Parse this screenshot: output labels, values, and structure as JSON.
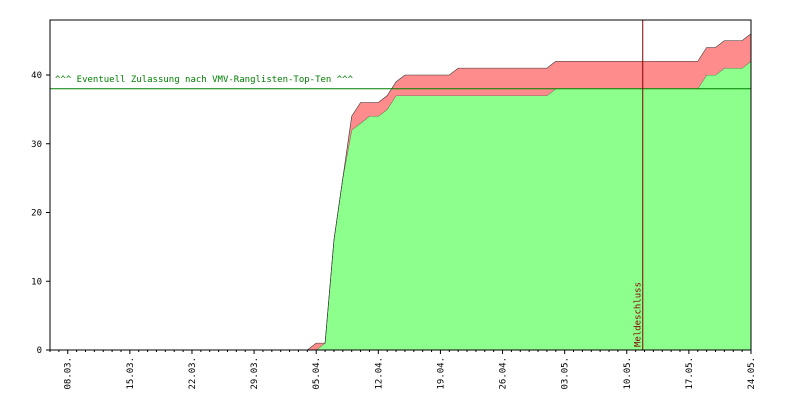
{
  "chart_data": {
    "type": "stacked_area",
    "categories": [
      null,
      null,
      "08.03.",
      null,
      null,
      null,
      null,
      null,
      null,
      "15.03.",
      null,
      null,
      null,
      null,
      null,
      null,
      "22.03.",
      null,
      null,
      null,
      null,
      null,
      null,
      "29.03.",
      null,
      null,
      null,
      null,
      null,
      null,
      "05.04.",
      null,
      null,
      null,
      null,
      null,
      null,
      "12.04.",
      null,
      null,
      null,
      null,
      null,
      null,
      "19.04.",
      null,
      null,
      null,
      null,
      null,
      null,
      "26.04.",
      null,
      null,
      null,
      null,
      null,
      null,
      "03.05.",
      null,
      null,
      null,
      null,
      null,
      null,
      "10.05.",
      null,
      null,
      null,
      null,
      null,
      null,
      "17.05.",
      null,
      null,
      null,
      null,
      null,
      null,
      "24.05."
    ],
    "series": [
      {
        "color": "#8cff8c",
        "values": [
          0,
          0,
          0,
          0,
          0,
          0,
          0,
          0,
          0,
          0,
          0,
          0,
          0,
          0,
          0,
          0,
          0,
          0,
          0,
          0,
          0,
          0,
          0,
          0,
          0,
          0,
          0,
          0,
          0,
          0,
          0,
          1,
          16,
          25,
          32,
          33,
          34,
          34,
          35,
          37,
          37,
          37,
          37,
          37,
          37,
          37,
          37,
          37,
          37,
          37,
          37,
          37,
          37,
          37,
          37,
          37,
          37,
          38,
          38,
          38,
          38,
          38,
          38,
          38,
          38,
          38,
          38,
          38,
          38,
          38,
          38,
          38,
          38,
          38,
          40,
          40,
          41,
          41,
          41,
          42
        ]
      },
      {
        "color": "#ff8c8c",
        "values": [
          0,
          0,
          0,
          0,
          0,
          0,
          0,
          0,
          0,
          0,
          0,
          0,
          0,
          0,
          0,
          0,
          0,
          0,
          0,
          0,
          0,
          0,
          0,
          0,
          0,
          0,
          0,
          0,
          0,
          0,
          1,
          0,
          0,
          0,
          2,
          3,
          2,
          2,
          2,
          2,
          3,
          3,
          3,
          3,
          3,
          3,
          4,
          4,
          4,
          4,
          4,
          4,
          4,
          4,
          4,
          4,
          4,
          4,
          4,
          4,
          4,
          4,
          4,
          4,
          4,
          4,
          4,
          4,
          4,
          4,
          4,
          4,
          4,
          4,
          4,
          4,
          4,
          4,
          4,
          4
        ]
      }
    ],
    "ylim": [
      0,
      48
    ],
    "yticks": [
      0,
      10,
      20,
      30,
      40
    ],
    "hline": {
      "value": 38,
      "label": "^^^ Eventuell Zulassung nach VMV-Ranglisten-Top-Ten ^^^",
      "color": "#008000"
    },
    "vline": {
      "at": 66.8,
      "label": "Meldeschluss",
      "color": "#880000"
    }
  }
}
